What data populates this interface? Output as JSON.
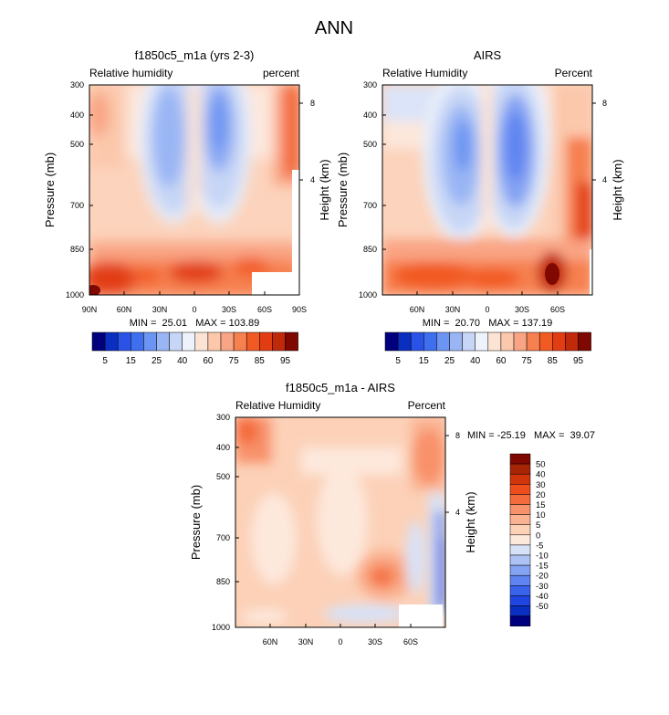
{
  "title": "ANN",
  "colors": {
    "seq": [
      "#00007f",
      "#0a2ec0",
      "#2a52e6",
      "#3d6fef",
      "#6c94f2",
      "#9ab5f4",
      "#c7d6f6",
      "#eef3fb",
      "#fde3d3",
      "#fbc8ac",
      "#f9a484",
      "#f6804f",
      "#f25a24",
      "#e23d12",
      "#c1290b",
      "#7f0800"
    ],
    "div": [
      "#00007f",
      "#0a2ec0",
      "#1f46e0",
      "#3a63ec",
      "#5f84f1",
      "#85a3f3",
      "#aec3f5",
      "#d7e2f8",
      "#fde8dc",
      "#fcd1b8",
      "#fab392",
      "#f8926b",
      "#f46c3e",
      "#ee4d1c",
      "#cf340b",
      "#a82407",
      "#7f0800"
    ]
  },
  "chart_data": [
    {
      "id": "panel1",
      "type": "heatmap",
      "title": "f1850c5_m1a (yrs 2-3)",
      "left_label": "Relative humidity",
      "right_label": "percent",
      "ylabel": "Pressure (mb)",
      "right_axis_label": "Height (km)",
      "y_ticks": [
        "300",
        "400",
        "500",
        "700",
        "850",
        "1000"
      ],
      "x_ticks": [
        "90N",
        "60N",
        "30N",
        "0",
        "30S",
        "60S",
        "90S"
      ],
      "height_ticks": [
        "8",
        "4"
      ],
      "stats": "MIN =  25.01   MAX = 103.89",
      "x_range": [
        90,
        -90
      ],
      "y_range_mb": [
        1000,
        300
      ]
    },
    {
      "id": "panel2",
      "type": "heatmap",
      "title": "AIRS",
      "left_label": "Relative Humidity",
      "right_label": "Percent",
      "ylabel": "Pressure (mb)",
      "right_axis_label": "Height (km)",
      "y_ticks": [
        "300",
        "400",
        "500",
        "700",
        "850",
        "1000"
      ],
      "x_ticks": [
        "60N",
        "30N",
        "0",
        "30S",
        "60S"
      ],
      "height_ticks": [
        "8",
        "4"
      ],
      "stats": "MIN =  20.70   MAX = 137.19",
      "x_range": [
        90,
        -90
      ],
      "y_range_mb": [
        1000,
        300
      ]
    },
    {
      "id": "panel3",
      "type": "heatmap",
      "title": "f1850c5_m1a - AIRS",
      "left_label": "Relative Humidity",
      "right_label": "Percent",
      "ylabel": "Pressure (mb)",
      "right_axis_label": "Height (km)",
      "y_ticks": [
        "300",
        "400",
        "500",
        "700",
        "850",
        "1000"
      ],
      "x_ticks": [
        "60N",
        "30N",
        "0",
        "30S",
        "60S"
      ],
      "height_ticks": [
        "8",
        "4"
      ],
      "stats": "MIN = -25.19   MAX =  39.07",
      "x_range": [
        90,
        -90
      ],
      "y_range_mb": [
        1000,
        300
      ]
    }
  ],
  "colorbar_seq": {
    "labels": [
      "5",
      "15",
      "25",
      "40",
      "60",
      "75",
      "85",
      "95"
    ]
  },
  "colorbar_div": {
    "labels": [
      "50",
      "40",
      "30",
      "20",
      "15",
      "10",
      "5",
      "0",
      "-5",
      "-10",
      "-15",
      "-20",
      "-30",
      "-40",
      "-50"
    ]
  }
}
